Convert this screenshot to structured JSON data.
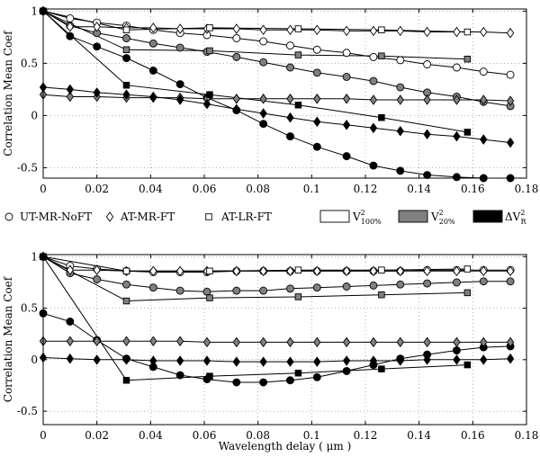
{
  "chart_data": {
    "type": "line",
    "legend": {
      "placement": "between-panels",
      "entries": [
        {
          "marker": "circle",
          "fill": "open",
          "label": "UT-MR-NoFT"
        },
        {
          "marker": "diamond",
          "fill": "open",
          "label": "AT-MR-FT"
        },
        {
          "marker": "square",
          "fill": "open",
          "label": "AT-LR-FT"
        },
        {
          "marker": "box",
          "fill": "open",
          "label": "V",
          "sup": "2",
          "sub": "100%"
        },
        {
          "marker": "box",
          "fill": "gray",
          "label": "V",
          "sup": "2",
          "sub": "20%"
        },
        {
          "marker": "box",
          "fill": "black",
          "label": "ΔV",
          "sup": "2",
          "sub": "R"
        }
      ]
    },
    "colors": {
      "open": "#ffffff",
      "gray": "#808080",
      "black": "#000000"
    },
    "panels": [
      {
        "ylabel": "Correlation Mean Coef",
        "xlabel": "",
        "xlim": [
          0,
          0.18
        ],
        "ylim": [
          -0.6,
          1.02
        ],
        "grid": true,
        "xticks": [
          0,
          0.02,
          0.04,
          0.06,
          0.08,
          0.1,
          0.12,
          0.14,
          0.16,
          0.18
        ],
        "xtick_labels": [
          "0",
          "0.02",
          "0.04",
          "0.06",
          "0.08",
          "0.1",
          "0.12",
          "0.14",
          "0.16",
          "0.18"
        ],
        "yticks": [
          -0.5,
          0,
          0.5,
          1
        ],
        "ytick_labels": [
          "-0.5",
          "0",
          "0.5",
          "1"
        ],
        "series": [
          {
            "marker": "circle",
            "fill": "open",
            "x": [
              0,
              0.01,
              0.02,
              0.031,
              0.041,
              0.051,
              0.061,
              0.072,
              0.082,
              0.092,
              0.102,
              0.113,
              0.123,
              0.133,
              0.143,
              0.154,
              0.164,
              0.174
            ],
            "y": [
              1,
              0.93,
              0.89,
              0.86,
              0.82,
              0.79,
              0.77,
              0.74,
              0.71,
              0.67,
              0.63,
              0.6,
              0.56,
              0.53,
              0.49,
              0.46,
              0.42,
              0.39
            ]
          },
          {
            "marker": "circle",
            "fill": "gray",
            "x": [
              0,
              0.01,
              0.02,
              0.031,
              0.041,
              0.051,
              0.061,
              0.072,
              0.082,
              0.092,
              0.102,
              0.113,
              0.123,
              0.133,
              0.143,
              0.154,
              0.164,
              0.174
            ],
            "y": [
              1,
              0.86,
              0.79,
              0.74,
              0.69,
              0.65,
              0.61,
              0.56,
              0.51,
              0.46,
              0.41,
              0.37,
              0.33,
              0.27,
              0.22,
              0.18,
              0.13,
              0.09
            ]
          },
          {
            "marker": "circle",
            "fill": "black",
            "x": [
              0,
              0.01,
              0.02,
              0.031,
              0.041,
              0.051,
              0.061,
              0.072,
              0.082,
              0.092,
              0.102,
              0.113,
              0.123,
              0.133,
              0.143,
              0.154,
              0.164,
              0.174
            ],
            "y": [
              1,
              0.76,
              0.66,
              0.55,
              0.43,
              0.3,
              0.17,
              0.05,
              -0.08,
              -0.2,
              -0.3,
              -0.39,
              -0.48,
              -0.53,
              -0.57,
              -0.59,
              -0.6,
              -0.6
            ]
          },
          {
            "marker": "diamond",
            "fill": "open",
            "x": [
              0,
              0.01,
              0.02,
              0.031,
              0.041,
              0.051,
              0.061,
              0.072,
              0.082,
              0.092,
              0.102,
              0.113,
              0.123,
              0.133,
              0.143,
              0.154,
              0.164,
              0.174
            ],
            "y": [
              1,
              0.85,
              0.85,
              0.84,
              0.84,
              0.83,
              0.83,
              0.83,
              0.82,
              0.82,
              0.82,
              0.81,
              0.81,
              0.81,
              0.8,
              0.8,
              0.8,
              0.79
            ]
          },
          {
            "marker": "diamond",
            "fill": "gray",
            "x": [
              0,
              0.01,
              0.02,
              0.031,
              0.041,
              0.051,
              0.061,
              0.072,
              0.082,
              0.092,
              0.102,
              0.113,
              0.123,
              0.133,
              0.143,
              0.154,
              0.164,
              0.174
            ],
            "y": [
              0.2,
              0.18,
              0.18,
              0.17,
              0.17,
              0.17,
              0.16,
              0.16,
              0.16,
              0.16,
              0.16,
              0.16,
              0.15,
              0.15,
              0.15,
              0.15,
              0.15,
              0.14
            ]
          },
          {
            "marker": "diamond",
            "fill": "black",
            "x": [
              0,
              0.01,
              0.02,
              0.031,
              0.041,
              0.051,
              0.061,
              0.072,
              0.082,
              0.092,
              0.102,
              0.113,
              0.123,
              0.133,
              0.143,
              0.154,
              0.164,
              0.174
            ],
            "y": [
              0.27,
              0.25,
              0.22,
              0.2,
              0.18,
              0.15,
              0.11,
              0.06,
              0.02,
              -0.02,
              -0.06,
              -0.09,
              -0.12,
              -0.15,
              -0.18,
              -0.2,
              -0.23,
              -0.26
            ]
          },
          {
            "marker": "square",
            "fill": "open",
            "x": [
              0,
              0.031,
              0.062,
              0.095,
              0.126,
              0.158
            ],
            "y": [
              1,
              0.82,
              0.84,
              0.83,
              0.82,
              0.8
            ]
          },
          {
            "marker": "square",
            "fill": "gray",
            "x": [
              0,
              0.031,
              0.062,
              0.095,
              0.126,
              0.158
            ],
            "y": [
              1,
              0.63,
              0.62,
              0.58,
              0.57,
              0.54
            ]
          },
          {
            "marker": "square",
            "fill": "black",
            "x": [
              0,
              0.031,
              0.062,
              0.095,
              0.126,
              0.158
            ],
            "y": [
              1,
              0.29,
              0.2,
              0.1,
              -0.02,
              -0.16
            ]
          }
        ]
      },
      {
        "ylabel": "Correlation Mean Coef",
        "xlabel": "Wavelength delay ( μm )",
        "xlim": [
          0,
          0.18
        ],
        "ylim": [
          -0.63,
          1.02
        ],
        "grid": true,
        "xticks": [
          0,
          0.02,
          0.04,
          0.06,
          0.08,
          0.1,
          0.12,
          0.14,
          0.16,
          0.18
        ],
        "xtick_labels": [
          "0",
          "0.02",
          "0.04",
          "0.06",
          "0.08",
          "0.1",
          "0.12",
          "0.14",
          "0.16",
          "0.18"
        ],
        "yticks": [
          -0.5,
          0,
          0.5,
          1
        ],
        "ytick_labels": [
          "-0.5",
          "0",
          "0.5",
          "1"
        ],
        "series": [
          {
            "marker": "circle",
            "fill": "open",
            "x": [
              0,
              0.01,
              0.02,
              0.031,
              0.041,
              0.051,
              0.061,
              0.072,
              0.082,
              0.092,
              0.102,
              0.113,
              0.123,
              0.133,
              0.143,
              0.154,
              0.164,
              0.174
            ],
            "y": [
              1,
              0.91,
              0.88,
              0.86,
              0.85,
              0.85,
              0.85,
              0.86,
              0.86,
              0.86,
              0.86,
              0.86,
              0.86,
              0.86,
              0.87,
              0.87,
              0.87,
              0.87
            ]
          },
          {
            "marker": "circle",
            "fill": "gray",
            "x": [
              0,
              0.01,
              0.02,
              0.031,
              0.041,
              0.051,
              0.061,
              0.072,
              0.082,
              0.092,
              0.102,
              0.113,
              0.123,
              0.133,
              0.143,
              0.154,
              0.164,
              0.174
            ],
            "y": [
              1,
              0.84,
              0.78,
              0.73,
              0.7,
              0.67,
              0.66,
              0.67,
              0.67,
              0.69,
              0.7,
              0.71,
              0.72,
              0.73,
              0.74,
              0.75,
              0.76,
              0.76
            ]
          },
          {
            "marker": "circle",
            "fill": "black",
            "x": [
              0,
              0.01,
              0.02,
              0.031,
              0.041,
              0.051,
              0.061,
              0.072,
              0.082,
              0.092,
              0.102,
              0.113,
              0.123,
              0.133,
              0.143,
              0.154,
              0.164,
              0.174
            ],
            "y": [
              0.45,
              0.37,
              0.19,
              0.01,
              -0.07,
              -0.15,
              -0.19,
              -0.22,
              -0.22,
              -0.2,
              -0.17,
              -0.11,
              -0.05,
              0.01,
              0.05,
              0.09,
              0.12,
              0.13
            ]
          },
          {
            "marker": "diamond",
            "fill": "open",
            "x": [
              0,
              0.01,
              0.02,
              0.031,
              0.041,
              0.051,
              0.061,
              0.072,
              0.082,
              0.092,
              0.102,
              0.113,
              0.123,
              0.133,
              0.143,
              0.154,
              0.164,
              0.174
            ],
            "y": [
              1,
              0.87,
              0.87,
              0.86,
              0.86,
              0.86,
              0.86,
              0.86,
              0.86,
              0.86,
              0.86,
              0.86,
              0.86,
              0.86,
              0.86,
              0.86,
              0.86,
              0.86
            ]
          },
          {
            "marker": "diamond",
            "fill": "gray",
            "x": [
              0,
              0.01,
              0.02,
              0.031,
              0.041,
              0.051,
              0.061,
              0.072,
              0.082,
              0.092,
              0.102,
              0.113,
              0.123,
              0.133,
              0.143,
              0.154,
              0.164,
              0.174
            ],
            "y": [
              0.18,
              0.18,
              0.18,
              0.18,
              0.18,
              0.18,
              0.17,
              0.17,
              0.17,
              0.17,
              0.17,
              0.17,
              0.17,
              0.17,
              0.17,
              0.17,
              0.17,
              0.17
            ]
          },
          {
            "marker": "diamond",
            "fill": "black",
            "x": [
              0,
              0.01,
              0.02,
              0.031,
              0.041,
              0.051,
              0.061,
              0.072,
              0.082,
              0.092,
              0.102,
              0.113,
              0.123,
              0.133,
              0.143,
              0.154,
              0.164,
              0.174
            ],
            "y": [
              0.02,
              0.01,
              0.0,
              0.0,
              -0.01,
              -0.01,
              -0.01,
              -0.02,
              -0.02,
              -0.02,
              -0.02,
              -0.01,
              -0.01,
              -0.01,
              0.0,
              0.0,
              0.0,
              0.01
            ]
          },
          {
            "marker": "square",
            "fill": "open",
            "x": [
              0,
              0.031,
              0.062,
              0.095,
              0.126,
              0.158
            ],
            "y": [
              1,
              0.86,
              0.86,
              0.87,
              0.87,
              0.88
            ]
          },
          {
            "marker": "square",
            "fill": "gray",
            "x": [
              0,
              0.031,
              0.062,
              0.095,
              0.126,
              0.158
            ],
            "y": [
              1,
              0.57,
              0.6,
              0.61,
              0.63,
              0.65
            ]
          },
          {
            "marker": "square",
            "fill": "black",
            "x": [
              0,
              0.031,
              0.062,
              0.095,
              0.126,
              0.158
            ],
            "y": [
              1,
              -0.2,
              -0.16,
              -0.13,
              -0.09,
              -0.05
            ]
          }
        ]
      }
    ]
  }
}
